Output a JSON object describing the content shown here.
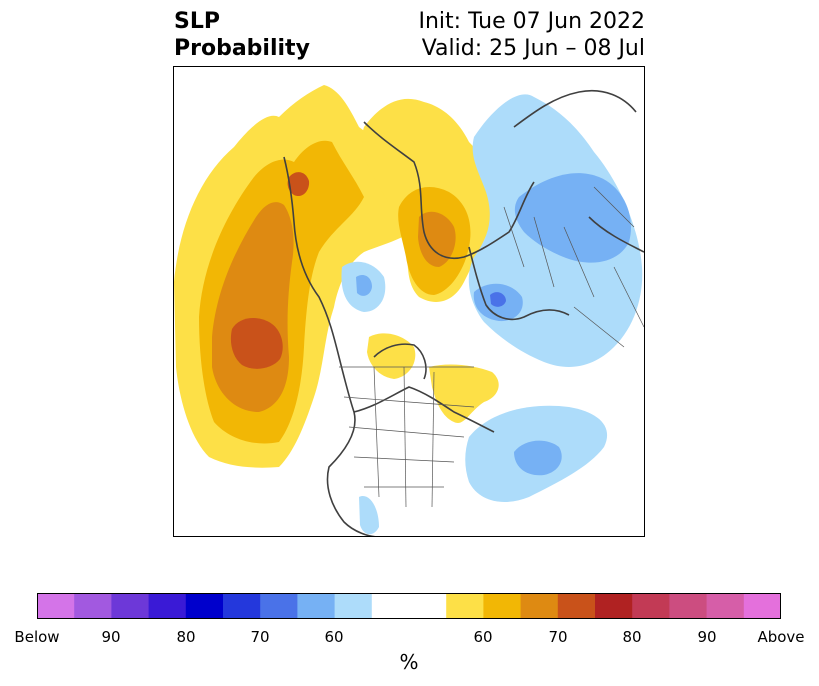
{
  "title": {
    "left_line1": "SLP",
    "left_line2": "Probability",
    "right_line1": "Init: Tue 07 Jun 2022",
    "right_line2": "Valid: 25 Jun – 08 Jul"
  },
  "colorbar": {
    "units": "%",
    "tick_labels": [
      "Below",
      "90",
      "80",
      "70",
      "60",
      "60",
      "70",
      "80",
      "90",
      "Above"
    ],
    "colors": [
      "#d474e8",
      "#a259e0",
      "#6d38d8",
      "#3a1ad6",
      "#0000cc",
      "#2438dc",
      "#4a72e8",
      "#76b1f4",
      "#addcfa",
      "#ffffff",
      "#ffffff",
      "#fde047",
      "#f2b705",
      "#de8a12",
      "#c9521a",
      "#b02222",
      "#c23a55",
      "#cc4d80",
      "#d65ea8",
      "#e470dc"
    ]
  },
  "legend_colors": {
    "above_60": "#fde047",
    "above_65": "#f2b705",
    "above_70": "#de8a12",
    "above_75": "#c9521a",
    "below_60": "#addcfa",
    "below_65": "#76b1f4",
    "below_70": "#4a72e8"
  }
}
